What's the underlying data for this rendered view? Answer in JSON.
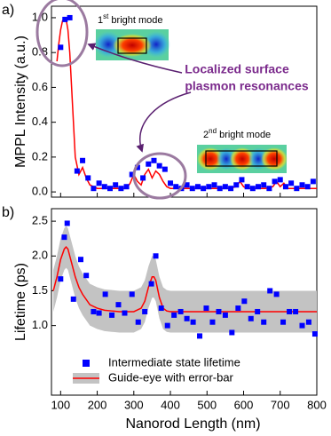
{
  "chart_data": [
    {
      "type": "scatter",
      "panel_label": "a)",
      "y_label": "MPPL Intensity (a.u.)",
      "xlim": [
        75,
        800
      ],
      "ylim": [
        -0.03,
        1.066
      ],
      "yticks": [
        {
          "value": 0,
          "label": "0.0"
        },
        0.2,
        0.4,
        0.6,
        0.8,
        {
          "value": 1,
          "label": "1.0"
        }
      ],
      "mode1_label": {
        "number": "1",
        "suffix": "st",
        "text": " bright mode"
      },
      "mode2_label": {
        "number": "2",
        "suffix": "nd",
        "text": " bright mode"
      },
      "annotation": [
        "Localized surface",
        "plasmon resonances"
      ],
      "series": [
        {
          "kind": "line",
          "color": "#ff0000",
          "x": [
            90,
            95,
            100,
            105,
            110,
            115,
            120,
            125,
            130,
            135,
            140,
            150,
            160,
            170,
            180,
            190,
            200,
            220,
            240,
            260,
            280,
            290,
            300,
            310,
            320,
            330,
            340,
            350,
            360,
            370,
            380,
            390,
            400,
            420,
            440,
            460,
            480,
            500,
            520,
            540,
            560,
            580,
            590,
            600,
            610,
            620,
            640,
            660,
            680,
            690,
            700,
            710,
            720,
            740,
            760,
            780,
            800
          ],
          "values": [
            0.75,
            0.85,
            0.93,
            0.98,
            1.0,
            0.99,
            0.93,
            0.8,
            0.6,
            0.4,
            0.2,
            0.1,
            0.14,
            0.08,
            0.04,
            0.03,
            0.02,
            0.02,
            0.02,
            0.02,
            0.02,
            0.05,
            0.1,
            0.06,
            0.04,
            0.1,
            0.13,
            0.08,
            0.12,
            0.1,
            0.06,
            0.03,
            0.02,
            0.02,
            0.02,
            0.02,
            0.02,
            0.02,
            0.02,
            0.02,
            0.02,
            0.03,
            0.06,
            0.03,
            0.02,
            0.02,
            0.02,
            0.02,
            0.03,
            0.06,
            0.03,
            0.05,
            0.02,
            0.02,
            0.02,
            0.02,
            0.02
          ]
        },
        {
          "kind": "markers",
          "color": "#0000ff",
          "x": [
            100,
            112,
            125,
            145,
            160,
            175,
            190,
            205,
            220,
            235,
            250,
            265,
            280,
            295,
            310,
            325,
            340,
            355,
            370,
            385,
            400,
            415,
            430,
            445,
            460,
            475,
            490,
            505,
            520,
            535,
            550,
            565,
            580,
            595,
            610,
            625,
            640,
            655,
            670,
            685,
            700,
            715,
            730,
            745,
            760,
            775,
            790
          ],
          "values": [
            0.83,
            0.99,
            1.0,
            0.12,
            0.18,
            0.08,
            0.02,
            0.05,
            0.03,
            0.02,
            0.04,
            0.02,
            0.03,
            0.1,
            0.14,
            0.08,
            0.16,
            0.18,
            0.15,
            0.13,
            0.05,
            0.03,
            0.02,
            0.04,
            0.02,
            0.03,
            0.02,
            0.03,
            0.04,
            0.02,
            0.03,
            0.02,
            0.04,
            0.07,
            0.03,
            0.02,
            0.03,
            0.04,
            0.02,
            0.06,
            0.07,
            0.03,
            0.05,
            0.02,
            0.04,
            0.03,
            0.06
          ]
        }
      ]
    },
    {
      "type": "scatter",
      "panel_label": "b)",
      "y_label": "Lifetime (ps)",
      "x_label": "Nanorod Length (nm)",
      "xlim": [
        75,
        800
      ],
      "xticks": [
        100,
        200,
        300,
        400,
        500,
        600,
        700,
        800
      ],
      "ylim": [
        0,
        2.68
      ],
      "yticks": [
        {
          "value": 1,
          "label": "1.0"
        },
        1.5,
        {
          "value": 2,
          "label": "2.0"
        },
        2.5
      ],
      "band_halfwidth": 0.3,
      "band_color": "#c3c3c3",
      "series": [
        {
          "kind": "line",
          "name": "Guide-eye with error-bar",
          "color": "#ff0000",
          "x": [
            80,
            90,
            100,
            110,
            115,
            120,
            130,
            140,
            150,
            160,
            180,
            200,
            220,
            240,
            260,
            280,
            300,
            320,
            330,
            340,
            350,
            355,
            360,
            370,
            380,
            390,
            400,
            450,
            500,
            600,
            700,
            800
          ],
          "values": [
            1.5,
            1.7,
            1.95,
            2.1,
            2.13,
            2.1,
            1.9,
            1.7,
            1.55,
            1.45,
            1.3,
            1.25,
            1.22,
            1.21,
            1.2,
            1.2,
            1.2,
            1.25,
            1.35,
            1.55,
            1.7,
            1.7,
            1.65,
            1.4,
            1.25,
            1.21,
            1.2,
            1.2,
            1.2,
            1.2,
            1.2,
            1.2
          ]
        },
        {
          "kind": "markers",
          "name": "Intermediate state lifetime",
          "color": "#0000ff",
          "x": [
            100,
            110,
            118,
            135,
            155,
            170,
            190,
            205,
            222,
            240,
            258,
            275,
            295,
            312,
            330,
            348,
            360,
            375,
            392,
            410,
            428,
            445,
            462,
            480,
            498,
            515,
            532,
            550,
            568,
            585,
            602,
            620,
            638,
            655,
            672,
            690,
            708,
            725,
            742,
            760,
            778,
            795
          ],
          "values": [
            1.67,
            2.27,
            2.47,
            1.38,
            1.95,
            1.72,
            1.2,
            1.18,
            1.45,
            1.15,
            1.3,
            1.18,
            1.45,
            1.05,
            1.2,
            1.6,
            2.0,
            1.25,
            1.0,
            1.15,
            1.2,
            1.1,
            1.05,
            0.85,
            1.25,
            1.05,
            1.2,
            1.15,
            0.9,
            1.25,
            1.35,
            1.1,
            1.2,
            1.05,
            1.5,
            1.45,
            1.05,
            1.2,
            1.2,
            1.0,
            1.05,
            0.88
          ]
        }
      ]
    }
  ]
}
